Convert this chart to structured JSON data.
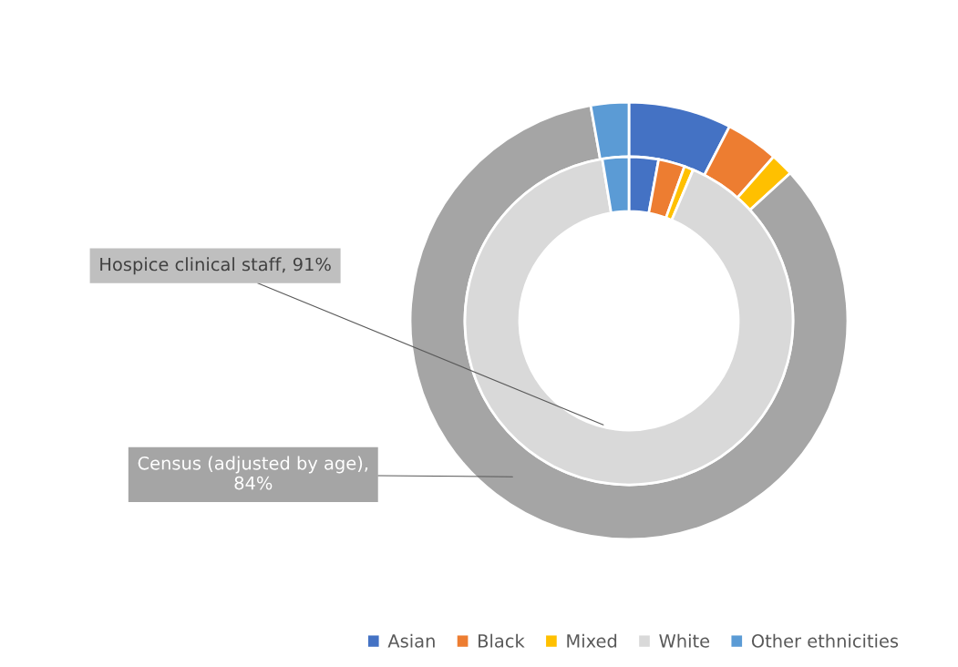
{
  "chart_data": {
    "type": "donut",
    "categories": [
      "Asian",
      "Black",
      "Mixed",
      "White",
      "Other ethnicities"
    ],
    "colors": [
      "#4472c4",
      "#ed7d31",
      "#ffc000",
      "#d9d9d9",
      "#5b9bd5"
    ],
    "legend": "bottom",
    "series": [
      {
        "values": [
          7.6,
          3.9,
          1.7,
          84,
          2.8
        ],
        "colors": [
          "#4472c4",
          "#ed7d31",
          "#ffc000",
          "#a5a5a5",
          "#5b9bd5"
        ],
        "value_labels": [
          null,
          null,
          null,
          "Census (adjusted by age), 84%",
          null
        ]
      },
      {
        "values": [
          2.9,
          2.6,
          0.9,
          91,
          2.6
        ],
        "value_labels": [
          null,
          null,
          null,
          "Hospice clinical staff, 91%",
          null
        ]
      }
    ]
  }
}
